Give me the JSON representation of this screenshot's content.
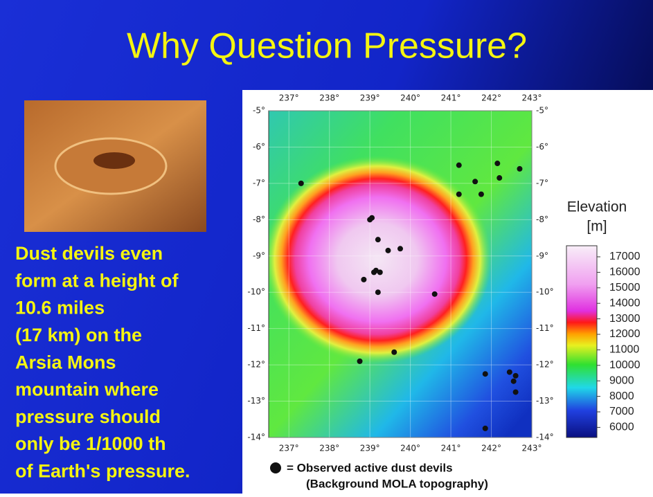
{
  "title": "Why Question Pressure?",
  "body": [
    "Dust devils even",
    "form at a height of",
    "10.6 miles",
    "(17 km) on the",
    "Arsia Mons",
    "mountain where",
    "pressure should",
    "only be 1/1000 th",
    "of Earth's pressure."
  ],
  "map": {
    "xlim": [
      236.5,
      243
    ],
    "ylim": [
      -5,
      -14
    ],
    "xticks": [
      {
        "value": 237,
        "label": "237°"
      },
      {
        "value": 238,
        "label": "238°"
      },
      {
        "value": 239,
        "label": "239°"
      },
      {
        "value": 240,
        "label": "240°"
      },
      {
        "value": 241,
        "label": "241°"
      },
      {
        "value": 242,
        "label": "242°"
      },
      {
        "value": 243,
        "label": "243°"
      }
    ],
    "yticks": [
      {
        "value": -5,
        "label": "-5°"
      },
      {
        "value": -6,
        "label": "-6°"
      },
      {
        "value": -7,
        "label": "-7°"
      },
      {
        "value": -8,
        "label": "-8°"
      },
      {
        "value": -9,
        "label": "-9°"
      },
      {
        "value": -10,
        "label": "-10°"
      },
      {
        "value": -11,
        "label": "-11°"
      },
      {
        "value": -12,
        "label": "-12°"
      },
      {
        "value": -13,
        "label": "-13°"
      },
      {
        "value": -14,
        "label": "-14°"
      }
    ],
    "points": [
      {
        "lon": 237.3,
        "lat": -7.0
      },
      {
        "lon": 239.0,
        "lat": -8.0
      },
      {
        "lon": 239.05,
        "lat": -7.95
      },
      {
        "lon": 239.2,
        "lat": -8.55
      },
      {
        "lon": 239.45,
        "lat": -8.85
      },
      {
        "lon": 239.75,
        "lat": -8.8
      },
      {
        "lon": 238.85,
        "lat": -9.65
      },
      {
        "lon": 239.15,
        "lat": -9.4
      },
      {
        "lon": 239.1,
        "lat": -9.45
      },
      {
        "lon": 239.25,
        "lat": -9.45
      },
      {
        "lon": 239.2,
        "lat": -10.0
      },
      {
        "lon": 240.6,
        "lat": -10.05
      },
      {
        "lon": 239.6,
        "lat": -11.65
      },
      {
        "lon": 238.75,
        "lat": -11.9
      },
      {
        "lon": 241.2,
        "lat": -6.5
      },
      {
        "lon": 241.6,
        "lat": -6.95
      },
      {
        "lon": 241.75,
        "lat": -7.3
      },
      {
        "lon": 241.2,
        "lat": -7.3
      },
      {
        "lon": 242.15,
        "lat": -6.45
      },
      {
        "lon": 242.2,
        "lat": -6.85
      },
      {
        "lon": 242.7,
        "lat": -6.6
      },
      {
        "lon": 241.85,
        "lat": -12.25
      },
      {
        "lon": 242.45,
        "lat": -12.2
      },
      {
        "lon": 242.6,
        "lat": -12.3
      },
      {
        "lon": 242.55,
        "lat": -12.45
      },
      {
        "lon": 242.6,
        "lat": -12.75
      },
      {
        "lon": 241.85,
        "lat": -13.75
      }
    ]
  },
  "colorbar": {
    "title": [
      "Elevation",
      "[m]"
    ],
    "ticks": [
      17000,
      16000,
      15000,
      14000,
      13000,
      12000,
      11000,
      10000,
      9000,
      8000,
      7000,
      6000
    ]
  },
  "legend": [
    "= Observed active dust devils",
    "(Background MOLA topography)"
  ]
}
